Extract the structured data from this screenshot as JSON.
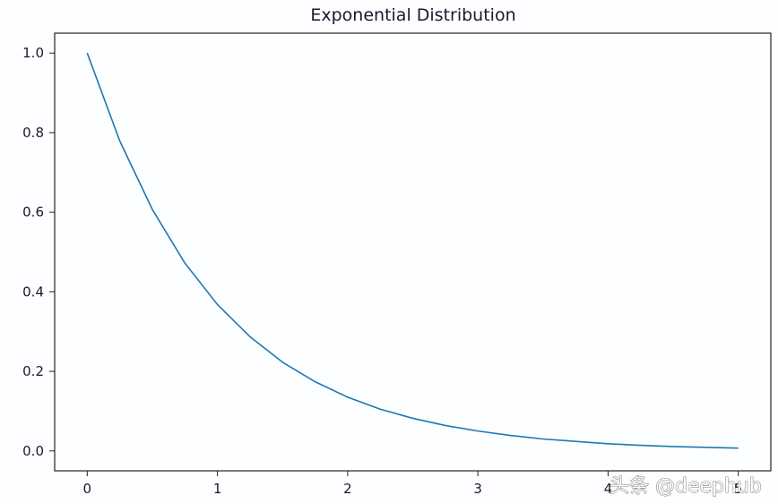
{
  "chart_data": {
    "type": "line",
    "title": "Exponential Distribution",
    "xlabel": "",
    "ylabel": "",
    "xlim": [
      -0.25,
      5.25
    ],
    "ylim": [
      -0.05,
      1.05
    ],
    "xticks": [
      0,
      1,
      2,
      3,
      4,
      5
    ],
    "yticks": [
      0.0,
      0.2,
      0.4,
      0.6,
      0.8,
      1.0
    ],
    "xtick_labels": [
      "0",
      "1",
      "2",
      "3",
      "4",
      "5"
    ],
    "ytick_labels": [
      "0.0",
      "0.2",
      "0.4",
      "0.6",
      "0.8",
      "1.0"
    ],
    "grid": false,
    "series": [
      {
        "color": "#1f77b4",
        "x": [
          0,
          0.25,
          0.5,
          0.75,
          1.0,
          1.25,
          1.5,
          1.75,
          2.0,
          2.25,
          2.5,
          2.75,
          3.0,
          3.25,
          3.5,
          3.75,
          4.0,
          4.25,
          4.5,
          4.75,
          5.0
        ],
        "y": [
          1.0,
          0.779,
          0.607,
          0.472,
          0.368,
          0.287,
          0.223,
          0.174,
          0.135,
          0.105,
          0.082,
          0.064,
          0.05,
          0.039,
          0.03,
          0.024,
          0.018,
          0.014,
          0.011,
          0.009,
          0.007
        ]
      }
    ]
  },
  "watermark": {
    "text": "头条 @deephub"
  }
}
